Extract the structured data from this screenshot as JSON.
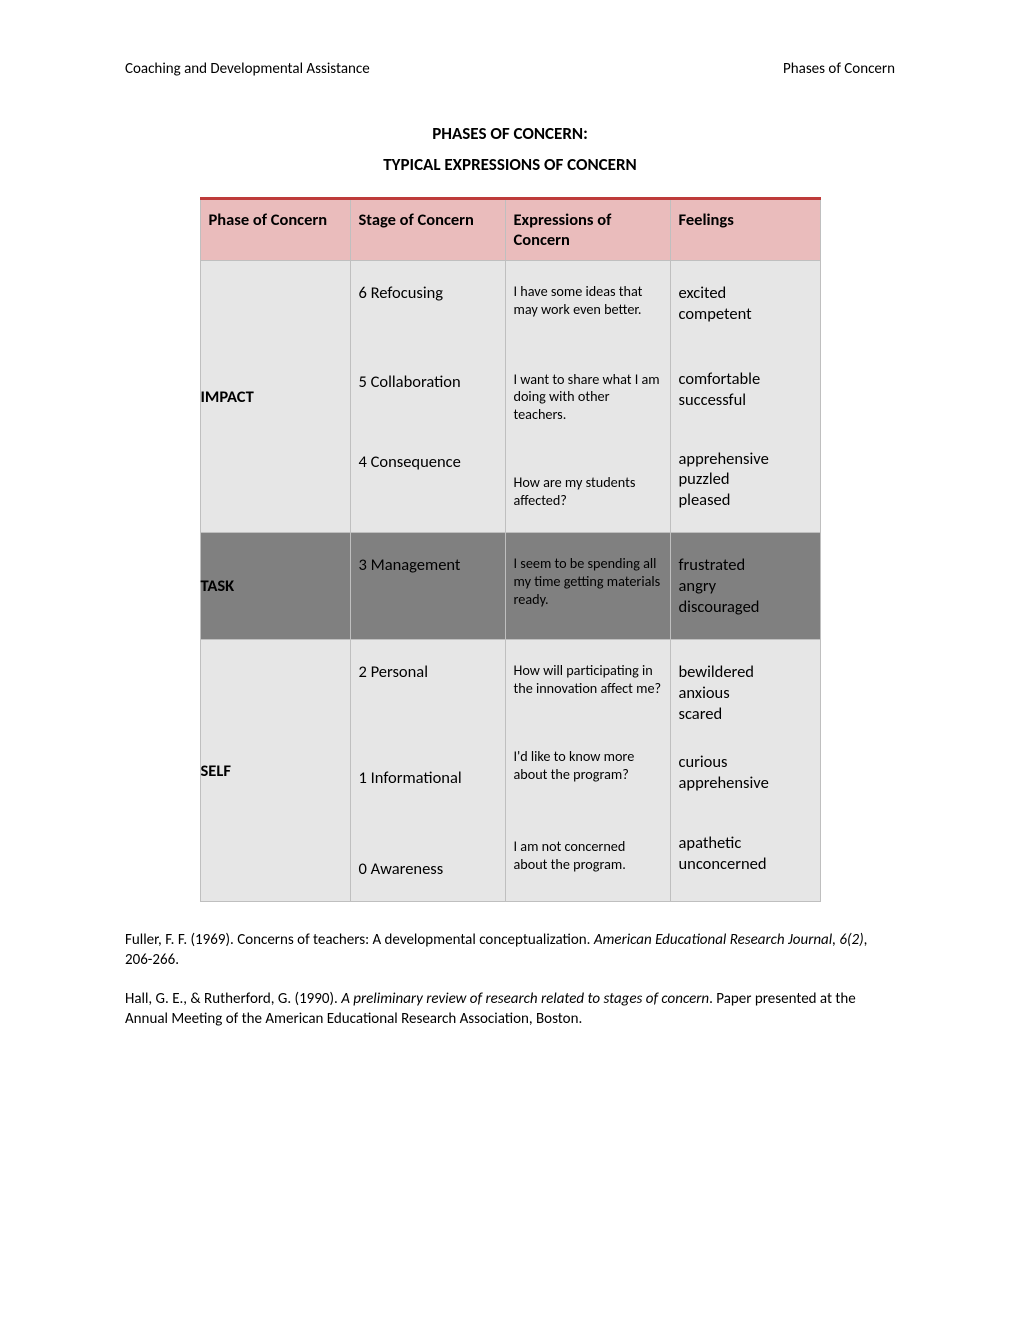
{
  "header": {
    "left": "Coaching and Developmental Assistance",
    "right": "Phases of Concern"
  },
  "title": "PHASES OF CONCERN:",
  "subtitle": "TYPICAL EXPRESSIONS OF CONCERN",
  "columns": {
    "c1": "Phase of Concern",
    "c2": "Stage of Concern",
    "c3": "Expressions of Concern",
    "c4": "Feelings"
  },
  "colors": {
    "header_bg": "#eabcbc",
    "header_border_top": "#be3b3a",
    "row_impact_bg": "#e6e6e6",
    "row_task_bg": "#808080",
    "row_self_bg": "#e6e6e6",
    "cell_border": "#bfbfbf"
  },
  "rows": [
    {
      "phase": "IMPACT",
      "stages": [
        {
          "label": "6 Refocusing",
          "expression": "I have some ideas that may work even better.",
          "feelings": "excited\ncompetent"
        },
        {
          "label": "5 Collaboration",
          "expression": "I want to share what I am doing with other teachers.",
          "feelings": "comfortable\nsuccessful"
        },
        {
          "label": "4 Consequence",
          "expression": "How are my students affected?",
          "feelings": "apprehensive\npuzzled\npleased"
        }
      ]
    },
    {
      "phase": "TASK",
      "stages": [
        {
          "label": "3 Management",
          "expression": "I seem to be spending all my time getting materials ready.",
          "feelings": "frustrated\nangry\ndiscouraged"
        }
      ]
    },
    {
      "phase": "SELF",
      "stages": [
        {
          "label": "2 Personal",
          "expression": "How will participating in the innovation affect me?",
          "feelings": "bewildered\nanxious\nscared"
        },
        {
          "label": "1 Informational",
          "expression": "I'd like to know more about the program?",
          "feelings": "curious\napprehensive"
        },
        {
          "label": "0 Awareness",
          "expression": "I am not concerned about the program.",
          "feelings": "apathetic\nunconcerned"
        }
      ]
    }
  ],
  "references": {
    "r1_pre": "Fuller, F. F. (1969).  Concerns of teachers:  A developmental conceptualization. ",
    "r1_ital": "American Educational Research Journal, 6(2)",
    "r1_post": ", 206-266.",
    "r2_pre": "Hall, G. E., & Rutherford, G. (1990). ",
    "r2_ital": "A preliminary review of research related to stages of concern",
    "r2_post": ".  Paper presented at the Annual Meeting of the American Educational Research Association, Boston."
  }
}
